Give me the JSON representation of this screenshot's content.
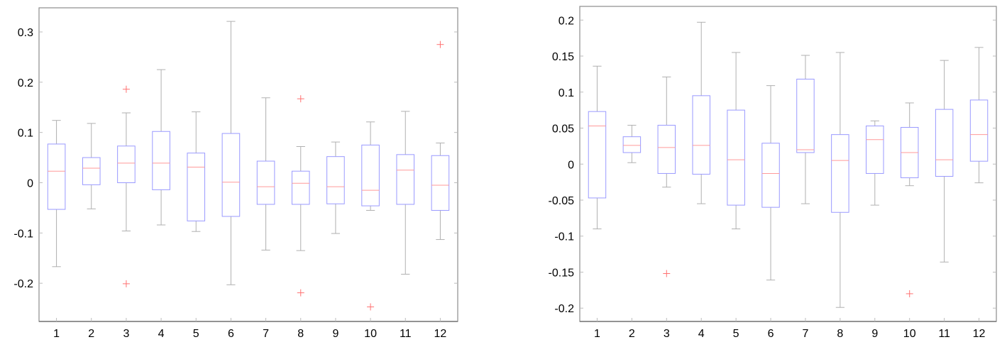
{
  "chart_data": [
    {
      "type": "boxplot",
      "title": "",
      "xlabel": "",
      "ylabel": "",
      "categories": [
        "1",
        "2",
        "3",
        "4",
        "5",
        "6",
        "7",
        "8",
        "9",
        "10",
        "11",
        "12"
      ],
      "ylim": [
        -0.276,
        0.348
      ],
      "yticks": [
        -0.2,
        -0.1,
        0,
        0.1,
        0.2,
        0.3
      ],
      "ytick_labels": [
        "-0.2",
        "-0.1",
        "0",
        "0.1",
        "0.2",
        "0.3"
      ],
      "grid": false,
      "colors": {
        "box": "#9a9aff",
        "median": "#ff9a9a",
        "whisker": "#b0b0b0",
        "outlier": "#ff7070",
        "axis": "#8c8c8c"
      },
      "boxes": [
        {
          "whisker_high": 0.124,
          "q3": 0.077,
          "median": 0.023,
          "q1": -0.053,
          "whisker_low": -0.167,
          "outliers": []
        },
        {
          "whisker_high": 0.118,
          "q3": 0.05,
          "median": 0.029,
          "q1": -0.004,
          "whisker_low": -0.052,
          "outliers": []
        },
        {
          "whisker_high": 0.139,
          "q3": 0.073,
          "median": 0.039,
          "q1": 0.0,
          "whisker_low": -0.096,
          "outliers": [
            0.186,
            -0.201
          ]
        },
        {
          "whisker_high": 0.225,
          "q3": 0.102,
          "median": 0.039,
          "q1": -0.014,
          "whisker_low": -0.084,
          "outliers": []
        },
        {
          "whisker_high": 0.141,
          "q3": 0.059,
          "median": 0.031,
          "q1": -0.076,
          "whisker_low": -0.097,
          "outliers": []
        },
        {
          "whisker_high": 0.321,
          "q3": 0.098,
          "median": 0.001,
          "q1": -0.067,
          "whisker_low": -0.203,
          "outliers": []
        },
        {
          "whisker_high": 0.169,
          "q3": 0.043,
          "median": -0.008,
          "q1": -0.043,
          "whisker_low": -0.134,
          "outliers": []
        },
        {
          "whisker_high": 0.072,
          "q3": 0.023,
          "median": -0.001,
          "q1": -0.043,
          "whisker_low": -0.135,
          "outliers": [
            0.167,
            -0.219
          ]
        },
        {
          "whisker_high": 0.081,
          "q3": 0.052,
          "median": -0.008,
          "q1": -0.042,
          "whisker_low": -0.101,
          "outliers": []
        },
        {
          "whisker_high": 0.121,
          "q3": 0.075,
          "median": -0.015,
          "q1": -0.046,
          "whisker_low": -0.055,
          "outliers": [
            -0.247
          ]
        },
        {
          "whisker_high": 0.142,
          "q3": 0.056,
          "median": 0.025,
          "q1": -0.043,
          "whisker_low": -0.182,
          "outliers": []
        },
        {
          "whisker_high": 0.079,
          "q3": 0.054,
          "median": -0.005,
          "q1": -0.055,
          "whisker_low": -0.113,
          "outliers": [
            0.275
          ]
        }
      ]
    },
    {
      "type": "boxplot",
      "title": "",
      "xlabel": "",
      "ylabel": "",
      "categories": [
        "1",
        "2",
        "3",
        "4",
        "5",
        "6",
        "7",
        "8",
        "9",
        "10",
        "11",
        "12"
      ],
      "ylim": [
        -0.2185,
        0.219
      ],
      "yticks": [
        -0.2,
        -0.15,
        -0.1,
        -0.05,
        0,
        0.05,
        0.1,
        0.15,
        0.2
      ],
      "ytick_labels": [
        "-0.2",
        "-0.15",
        "-0.1",
        "-0.05",
        "0",
        "0.05",
        "0.1",
        "0.15",
        "0.2"
      ],
      "grid": false,
      "colors": {
        "box": "#9a9aff",
        "median": "#ff9a9a",
        "whisker": "#b0b0b0",
        "outlier": "#ff7070",
        "axis": "#8c8c8c"
      },
      "boxes": [
        {
          "whisker_high": 0.136,
          "q3": 0.073,
          "median": 0.053,
          "q1": -0.047,
          "whisker_low": -0.09,
          "outliers": []
        },
        {
          "whisker_high": 0.054,
          "q3": 0.038,
          "median": 0.026,
          "q1": 0.016,
          "whisker_low": 0.002,
          "outliers": []
        },
        {
          "whisker_high": 0.121,
          "q3": 0.054,
          "median": 0.023,
          "q1": -0.013,
          "whisker_low": -0.032,
          "outliers": [
            -0.152
          ]
        },
        {
          "whisker_high": 0.197,
          "q3": 0.095,
          "median": 0.026,
          "q1": -0.014,
          "whisker_low": -0.055,
          "outliers": []
        },
        {
          "whisker_high": 0.155,
          "q3": 0.075,
          "median": 0.006,
          "q1": -0.057,
          "whisker_low": -0.09,
          "outliers": []
        },
        {
          "whisker_high": 0.109,
          "q3": 0.029,
          "median": -0.013,
          "q1": -0.06,
          "whisker_low": -0.161,
          "outliers": []
        },
        {
          "whisker_high": 0.151,
          "q3": 0.118,
          "median": 0.02,
          "q1": 0.016,
          "whisker_low": -0.055,
          "outliers": []
        },
        {
          "whisker_high": 0.155,
          "q3": 0.041,
          "median": 0.005,
          "q1": -0.067,
          "whisker_low": -0.199,
          "outliers": []
        },
        {
          "whisker_high": 0.06,
          "q3": 0.053,
          "median": 0.034,
          "q1": -0.013,
          "whisker_low": -0.057,
          "outliers": []
        },
        {
          "whisker_high": 0.085,
          "q3": 0.051,
          "median": 0.016,
          "q1": -0.019,
          "whisker_low": -0.03,
          "outliers": [
            -0.18
          ]
        },
        {
          "whisker_high": 0.144,
          "q3": 0.076,
          "median": 0.006,
          "q1": -0.017,
          "whisker_low": -0.136,
          "outliers": []
        },
        {
          "whisker_high": 0.162,
          "q3": 0.089,
          "median": 0.041,
          "q1": 0.004,
          "whisker_low": -0.026,
          "outliers": []
        }
      ]
    }
  ]
}
